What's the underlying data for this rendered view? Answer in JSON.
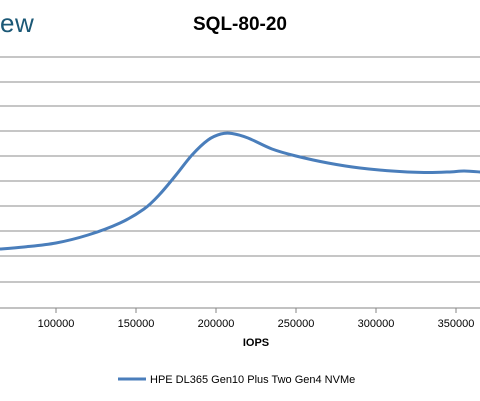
{
  "logo": {
    "text": "ew"
  },
  "chart_data": {
    "type": "line",
    "title": "SQL-80-20",
    "xlabel": "IOPS",
    "ylabel": "",
    "xlim": [
      65000,
      365000
    ],
    "x_ticks": [
      100000,
      150000,
      200000,
      250000,
      300000,
      350000
    ],
    "x_tick_labels": [
      "100000",
      "150000",
      "200000",
      "250000",
      "300000",
      "350000"
    ],
    "grid": true,
    "legend_position": "bottom",
    "series": [
      {
        "name": "HPE DL365 Gen10 Plus Two Gen4 NVMe",
        "color": "#4a7ebb",
        "points": [
          [
            65000,
            192
          ],
          [
            80000,
            190
          ],
          [
            100000,
            186
          ],
          [
            120000,
            178
          ],
          [
            140000,
            166
          ],
          [
            155000,
            152
          ],
          [
            165000,
            137
          ],
          [
            175000,
            118
          ],
          [
            185000,
            98
          ],
          [
            195000,
            83
          ],
          [
            203000,
            77
          ],
          [
            210000,
            76.5
          ],
          [
            220000,
            81
          ],
          [
            235000,
            92
          ],
          [
            250000,
            99
          ],
          [
            270000,
            106
          ],
          [
            290000,
            111
          ],
          [
            310000,
            114
          ],
          [
            330000,
            115.5
          ],
          [
            345000,
            115
          ],
          [
            355000,
            114
          ],
          [
            365000,
            115
          ]
        ]
      }
    ]
  }
}
